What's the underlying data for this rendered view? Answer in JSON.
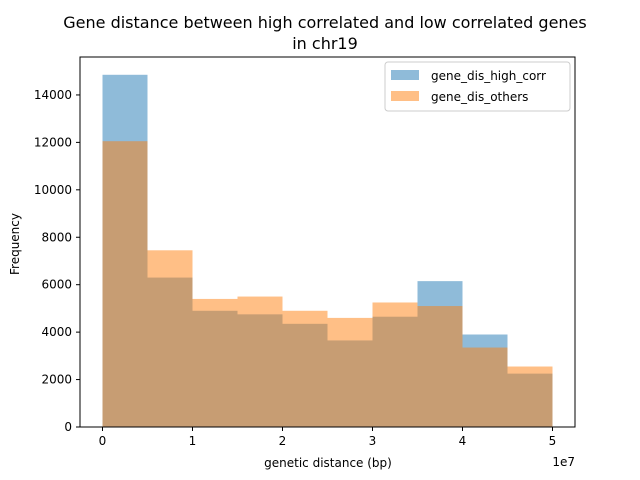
{
  "chart_data": {
    "type": "bar",
    "subtype": "overlapping-histogram",
    "title_lines": [
      "Gene distance between high correlated and low correlated genes",
      "in chr19"
    ],
    "xlabel": "genetic distance (bp)",
    "ylabel": "Frequency",
    "x_offset_text": "1e7",
    "xlim": [
      -2500000,
      52500000
    ],
    "ylim": [
      0,
      15600
    ],
    "x_ticks": [
      0,
      10000000,
      20000000,
      30000000,
      40000000,
      50000000
    ],
    "x_tick_labels": [
      "0",
      "1",
      "2",
      "3",
      "4",
      "5"
    ],
    "y_ticks": [
      0,
      2000,
      4000,
      6000,
      8000,
      10000,
      12000,
      14000
    ],
    "y_tick_labels": [
      "0",
      "2000",
      "4000",
      "6000",
      "8000",
      "10000",
      "12000",
      "14000"
    ],
    "bin_edges": [
      0,
      5000000,
      10000000,
      15000000,
      20000000,
      25000000,
      30000000,
      35000000,
      40000000,
      45000000,
      50000000
    ],
    "grid": false,
    "legend_position": "top-right",
    "series": [
      {
        "name": "gene_dis_high_corr",
        "color": "#1f77b4",
        "alpha": 0.5,
        "values": [
          14850,
          6300,
          4900,
          4750,
          4350,
          3650,
          4650,
          6150,
          3900,
          2250
        ]
      },
      {
        "name": "gene_dis_others",
        "color": "#ff7f0e",
        "alpha": 0.5,
        "values": [
          12050,
          7450,
          5400,
          5500,
          4900,
          4600,
          5250,
          5100,
          3350,
          2550
        ]
      }
    ]
  }
}
